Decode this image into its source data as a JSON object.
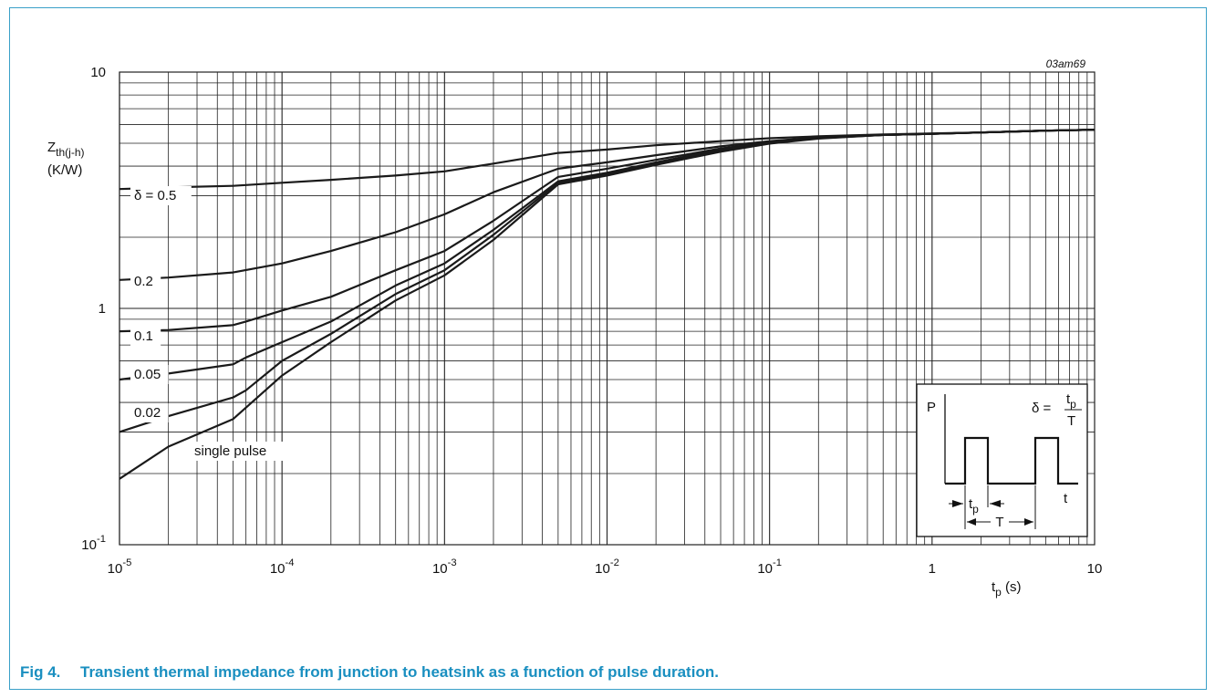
{
  "chart_data": {
    "type": "line",
    "x_scale": "log",
    "y_scale": "log",
    "xlim": [
      1e-05,
      10
    ],
    "ylim": [
      0.1,
      10
    ],
    "grid": true,
    "figure_code": "03am69",
    "ylabel_main": "Z",
    "ylabel_sub": "th(j-h)",
    "ylabel_unit": "(K/W)",
    "xlabel_main": "t",
    "xlabel_sub": "p",
    "xlabel_unit": "(s)",
    "x_ticks": [
      {
        "value": 1e-05,
        "base": "10",
        "exp": "-5"
      },
      {
        "value": 0.0001,
        "base": "10",
        "exp": "-4"
      },
      {
        "value": 0.001,
        "base": "10",
        "exp": "-3"
      },
      {
        "value": 0.01,
        "base": "10",
        "exp": "-2"
      },
      {
        "value": 0.1,
        "base": "10",
        "exp": "-1"
      },
      {
        "value": 1,
        "base": "1",
        "exp": ""
      },
      {
        "value": 10,
        "base": "10",
        "exp": ""
      }
    ],
    "y_ticks": [
      {
        "value": 0.1,
        "base": "10",
        "exp": "-1"
      },
      {
        "value": 1,
        "base": "1",
        "exp": ""
      },
      {
        "value": 10,
        "base": "10",
        "exp": ""
      }
    ],
    "series": [
      {
        "name": "δ = 0.5",
        "x": [
          1e-05,
          2e-05,
          5e-05,
          0.0001,
          0.0002,
          0.0005,
          0.001,
          0.002,
          0.005,
          0.01,
          0.02,
          0.05,
          0.1,
          0.2,
          0.5,
          1,
          2,
          5,
          10
        ],
        "y": [
          3.2,
          3.25,
          3.3,
          3.4,
          3.5,
          3.65,
          3.8,
          4.1,
          4.55,
          4.7,
          4.9,
          5.1,
          5.25,
          5.35,
          5.45,
          5.5,
          5.55,
          5.65,
          5.7
        ]
      },
      {
        "name": "0.2",
        "x": [
          1e-05,
          2e-05,
          5e-05,
          0.0001,
          0.0002,
          0.0005,
          0.001,
          0.002,
          0.005,
          0.01,
          0.02,
          0.05,
          0.1,
          0.2,
          0.5,
          1,
          2,
          5,
          10
        ],
        "y": [
          1.32,
          1.35,
          1.42,
          1.55,
          1.75,
          2.1,
          2.5,
          3.1,
          3.9,
          4.15,
          4.45,
          4.85,
          5.1,
          5.3,
          5.42,
          5.48,
          5.55,
          5.65,
          5.7
        ]
      },
      {
        "name": "0.1",
        "x": [
          1e-05,
          2e-05,
          5e-05,
          6e-05,
          0.0001,
          0.0002,
          0.0005,
          0.001,
          0.002,
          0.005,
          0.01,
          0.02,
          0.05,
          0.1,
          0.2,
          0.5,
          1,
          2,
          5,
          10
        ],
        "y": [
          0.8,
          0.81,
          0.85,
          0.88,
          0.98,
          1.12,
          1.45,
          1.75,
          2.35,
          3.6,
          3.9,
          4.25,
          4.75,
          5.05,
          5.28,
          5.42,
          5.48,
          5.55,
          5.65,
          5.7
        ]
      },
      {
        "name": "0.05",
        "x": [
          1e-05,
          2e-05,
          5e-05,
          6e-05,
          0.0001,
          0.0002,
          0.0005,
          0.001,
          0.002,
          0.005,
          0.01,
          0.02,
          0.05,
          0.1,
          0.2,
          0.5,
          1,
          2,
          5,
          10
        ],
        "y": [
          0.5,
          0.53,
          0.58,
          0.62,
          0.72,
          0.88,
          1.25,
          1.55,
          2.15,
          3.45,
          3.75,
          4.15,
          4.7,
          5.02,
          5.27,
          5.42,
          5.48,
          5.55,
          5.65,
          5.7
        ]
      },
      {
        "name": "0.02",
        "x": [
          1e-05,
          2e-05,
          5e-05,
          6e-05,
          0.0001,
          0.0002,
          0.0005,
          0.001,
          0.002,
          0.005,
          0.01,
          0.02,
          0.05,
          0.1,
          0.2,
          0.5,
          1,
          2,
          5,
          10
        ],
        "y": [
          0.3,
          0.35,
          0.42,
          0.45,
          0.6,
          0.78,
          1.15,
          1.45,
          2.05,
          3.4,
          3.7,
          4.1,
          4.65,
          5.0,
          5.25,
          5.42,
          5.48,
          5.55,
          5.65,
          5.7
        ]
      },
      {
        "name": "single pulse",
        "x": [
          1e-05,
          2e-05,
          5e-05,
          0.0001,
          0.0002,
          0.0005,
          0.001,
          0.002,
          0.005,
          0.01,
          0.02,
          0.05,
          0.1,
          0.2,
          0.5,
          1,
          2,
          5,
          10
        ],
        "y": [
          0.19,
          0.26,
          0.34,
          0.52,
          0.72,
          1.08,
          1.38,
          1.95,
          3.35,
          3.65,
          4.05,
          4.6,
          4.98,
          5.23,
          5.42,
          5.48,
          5.55,
          5.65,
          5.7
        ]
      }
    ],
    "inset": {
      "p_label": "P",
      "t_label": "t",
      "tp_main": "t",
      "tp_sub": "p",
      "period_label": "T",
      "formula_lhs": "δ =",
      "formula_num_main": "t",
      "formula_num_sub": "p",
      "formula_den": "T"
    }
  },
  "caption": {
    "number": "Fig 4.",
    "text": "Transient thermal impedance from junction to heatsink as a function of pulse duration."
  },
  "colors": {
    "frame": "#3aa0c8",
    "caption": "#1a8fc0",
    "line": "#1a1a1a",
    "grid": "#222222"
  }
}
